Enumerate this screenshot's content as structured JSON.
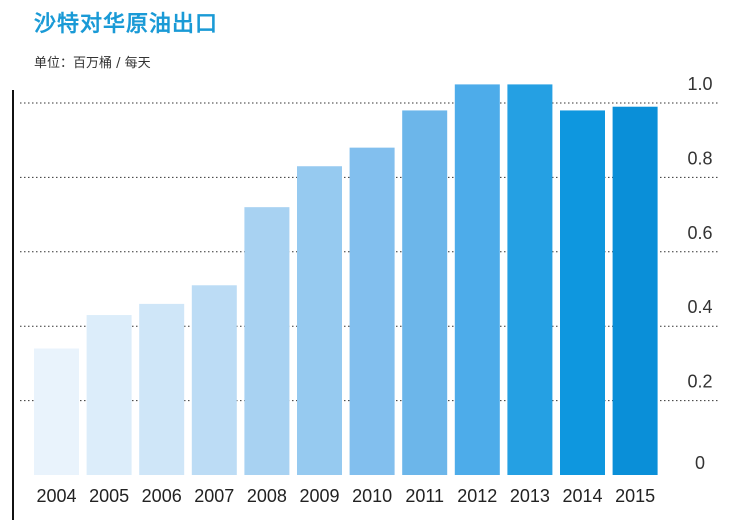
{
  "title": "沙特对华原油出口",
  "unit_label": "单位：百万桶 / 每天",
  "chart_data": {
    "type": "bar",
    "title": "沙特对华原油出口",
    "ylabel": "单位：百万桶 / 每天",
    "xlabel": "",
    "categories": [
      "2004",
      "2005",
      "2006",
      "2007",
      "2008",
      "2009",
      "2010",
      "2011",
      "2012",
      "2013",
      "2014",
      "2015"
    ],
    "values": [
      0.34,
      0.43,
      0.46,
      0.51,
      0.72,
      0.83,
      0.88,
      0.98,
      1.05,
      1.05,
      0.98,
      0.99
    ],
    "ylim": [
      0,
      1.0
    ],
    "yticks": [
      "0",
      "0.2",
      "0.4",
      "0.6",
      "0.8",
      "1.0"
    ],
    "grid": "horizontal-dotted",
    "colors": [
      "#e9f3fc",
      "#dcedfa",
      "#cfe6f8",
      "#bcdcf5",
      "#a8d2f2",
      "#96caf0",
      "#82bfee",
      "#6cb6ea",
      "#4dacea",
      "#25a0e3",
      "#0e97df",
      "#0a8fd8"
    ]
  }
}
